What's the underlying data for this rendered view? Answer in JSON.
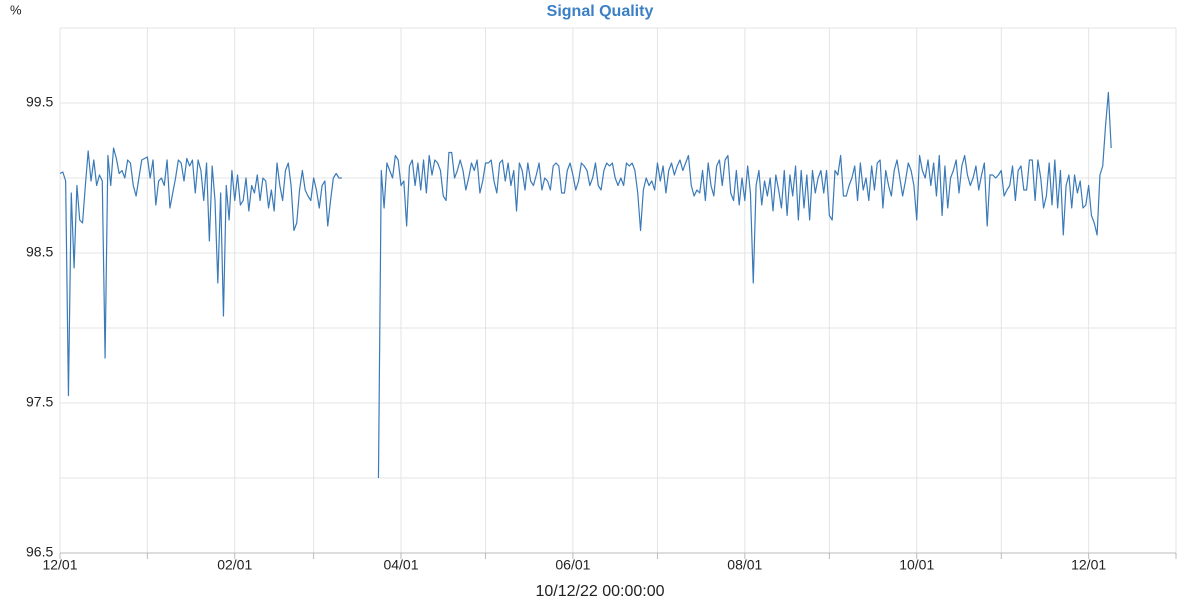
{
  "chart_data": {
    "type": "line",
    "title": "Signal Quality",
    "y_label": "%",
    "x_label": "10/12/22 00:00:00",
    "color": "#3a7ab8",
    "grid": true,
    "xlim": [
      0,
      396
    ],
    "xticks": [
      {
        "value": 0,
        "label": "12/01"
      },
      {
        "value": 31,
        "label": null
      },
      {
        "value": 62,
        "label": "02/01"
      },
      {
        "value": 90,
        "label": null
      },
      {
        "value": 121,
        "label": "04/01"
      },
      {
        "value": 151,
        "label": null
      },
      {
        "value": 182,
        "label": "06/01"
      },
      {
        "value": 212,
        "label": null
      },
      {
        "value": 243,
        "label": "08/01"
      },
      {
        "value": 273,
        "label": null
      },
      {
        "value": 304,
        "label": "10/01"
      },
      {
        "value": 334,
        "label": null
      },
      {
        "value": 365,
        "label": "12/01"
      },
      {
        "value": 396,
        "label": null
      }
    ],
    "ylim": [
      96.5,
      100
    ],
    "yticks": [
      96.5,
      {
        "value": 97,
        "label": null
      },
      97.5,
      {
        "value": 98,
        "label": null
      },
      98.5,
      {
        "value": 99,
        "label": null
      },
      99.5,
      {
        "value": 100,
        "label": null
      }
    ],
    "x": [
      0,
      1,
      2,
      3,
      4,
      5,
      6,
      7,
      8,
      9,
      10,
      11,
      12,
      13,
      14,
      15,
      16,
      17,
      18,
      19,
      20,
      21,
      22,
      23,
      24,
      25,
      26,
      27,
      28,
      29,
      30,
      31,
      32,
      33,
      34,
      35,
      36,
      37,
      38,
      39,
      40,
      41,
      42,
      43,
      44,
      45,
      46,
      47,
      48,
      49,
      50,
      51,
      52,
      53,
      54,
      55,
      56,
      57,
      58,
      59,
      60,
      61,
      62,
      63,
      64,
      65,
      66,
      67,
      68,
      69,
      70,
      71,
      72,
      73,
      74,
      75,
      76,
      77,
      78,
      79,
      80,
      81,
      82,
      83,
      84,
      85,
      86,
      87,
      88,
      89,
      90,
      91,
      92,
      93,
      94,
      95,
      96,
      97,
      98,
      99,
      100,
      101,
      102,
      103,
      104,
      105,
      106,
      107,
      108,
      109,
      110,
      111,
      112,
      113,
      114,
      115,
      116,
      117,
      118,
      119,
      120,
      121,
      122,
      123,
      124,
      125,
      126,
      127,
      128,
      129,
      130,
      131,
      132,
      133,
      134,
      135,
      136,
      137,
      138,
      139,
      140,
      141,
      142,
      143,
      144,
      145,
      146,
      147,
      148,
      149,
      150,
      151,
      152,
      153,
      154,
      155,
      156,
      157,
      158,
      159,
      160,
      161,
      162,
      163,
      164,
      165,
      166,
      167,
      168,
      169,
      170,
      171,
      172,
      173,
      174,
      175,
      176,
      177,
      178,
      179,
      180,
      181,
      182,
      183,
      184,
      185,
      186,
      187,
      188,
      189,
      190,
      191,
      192,
      193,
      194,
      195,
      196,
      197,
      198,
      199,
      200,
      201,
      202,
      203,
      204,
      205,
      206,
      207,
      208,
      209,
      210,
      211,
      212,
      213,
      214,
      215,
      216,
      217,
      218,
      219,
      220,
      221,
      222,
      223,
      224,
      225,
      226,
      227,
      228,
      229,
      230,
      231,
      232,
      233,
      234,
      235,
      236,
      237,
      238,
      239,
      240,
      241,
      242,
      243,
      244,
      245,
      246,
      247,
      248,
      249,
      250,
      251,
      252,
      253,
      254,
      255,
      256,
      257,
      258,
      259,
      260,
      261,
      262,
      263,
      264,
      265,
      266,
      267,
      268,
      269,
      270,
      271,
      272,
      273,
      274,
      275,
      276,
      277,
      278,
      279,
      280,
      281,
      282,
      283,
      284,
      285,
      286,
      287,
      288,
      289,
      290,
      291,
      292,
      293,
      294,
      295,
      296,
      297,
      298,
      299,
      300,
      301,
      302,
      303,
      304,
      305,
      306,
      307,
      308,
      309,
      310,
      311,
      312,
      313,
      314,
      315,
      316,
      317,
      318,
      319,
      320,
      321,
      322,
      323,
      324,
      325,
      326,
      327,
      328,
      329,
      330,
      331,
      332,
      333,
      334,
      335,
      336,
      337,
      338,
      339,
      340,
      341,
      342,
      343,
      344,
      345,
      346,
      347,
      348,
      349,
      350,
      351,
      352,
      353,
      354,
      355,
      356,
      357,
      358,
      359,
      360,
      361,
      362,
      363,
      364,
      365,
      366,
      367,
      368,
      369,
      370,
      371,
      372,
      373
    ],
    "values": [
      99.03,
      99.04,
      98.98,
      97.55,
      98.9,
      98.4,
      98.95,
      98.72,
      98.7,
      98.95,
      99.18,
      98.98,
      99.12,
      98.95,
      99.02,
      98.98,
      97.8,
      99.15,
      98.95,
      99.2,
      99.13,
      99.03,
      99.05,
      99.0,
      99.12,
      99.1,
      98.95,
      98.88,
      99.0,
      99.12,
      99.13,
      99.14,
      99.0,
      99.12,
      98.82,
      98.98,
      99.0,
      98.95,
      99.12,
      98.8,
      98.9,
      99.0,
      99.12,
      99.1,
      98.98,
      99.13,
      99.08,
      99.12,
      98.9,
      99.12,
      99.05,
      98.85,
      99.1,
      98.58,
      99.08,
      98.85,
      98.3,
      98.9,
      98.08,
      98.95,
      98.72,
      99.05,
      98.85,
      99.02,
      98.82,
      98.85,
      99.0,
      98.78,
      98.95,
      98.9,
      99.02,
      98.85,
      99.0,
      98.98,
      98.8,
      98.92,
      98.78,
      99.1,
      98.95,
      98.85,
      99.05,
      99.1,
      98.95,
      98.65,
      98.7,
      98.92,
      99.05,
      98.92,
      98.88,
      98.85,
      99.0,
      98.92,
      98.8,
      98.95,
      98.98,
      98.68,
      98.85,
      99.0,
      99.03,
      99.0,
      99.0,
      null,
      null,
      null,
      null,
      null,
      null,
      null,
      null,
      null,
      null,
      null,
      null,
      97.0,
      99.05,
      98.8,
      99.1,
      99.05,
      99.0,
      99.15,
      99.12,
      98.95,
      98.98,
      98.68,
      99.08,
      99.12,
      98.95,
      99.1,
      98.92,
      99.12,
      98.9,
      99.15,
      99.02,
      99.12,
      99.1,
      99.05,
      98.88,
      98.85,
      99.17,
      99.17,
      99.0,
      99.05,
      99.12,
      99.05,
      98.92,
      99.0,
      99.1,
      99.05,
      99.12,
      98.9,
      98.98,
      99.1,
      99.1,
      99.12,
      98.98,
      98.9,
      99.1,
      99.12,
      98.98,
      99.1,
      98.95,
      99.05,
      98.78,
      99.1,
      99.05,
      98.92,
      99.1,
      98.98,
      98.95,
      99.02,
      99.1,
      98.92,
      99.0,
      98.98,
      98.92,
      99.08,
      99.1,
      99.08,
      98.9,
      98.9,
      99.05,
      99.1,
      99.02,
      98.92,
      98.98,
      99.1,
      99.08,
      99.05,
      98.95,
      99.0,
      99.1,
      98.95,
      98.92,
      99.05,
      99.1,
      99.08,
      99.1,
      99.0,
      98.95,
      99.0,
      98.95,
      99.1,
      99.08,
      99.1,
      99.05,
      98.9,
      98.65,
      98.92,
      99.0,
      98.95,
      98.98,
      98.92,
      99.1,
      98.98,
      99.08,
      98.9,
      99.05,
      99.1,
      99.02,
      99.08,
      99.12,
      99.05,
      99.1,
      99.15,
      98.95,
      98.88,
      98.92,
      98.9,
      99.05,
      98.85,
      99.1,
      98.95,
      98.88,
      99.08,
      99.12,
      98.95,
      99.12,
      99.15,
      98.9,
      98.85,
      99.05,
      98.82,
      99.0,
      98.85,
      99.08,
      98.9,
      98.3,
      98.95,
      99.05,
      98.82,
      98.98,
      98.88,
      99.0,
      98.78,
      99.02,
      98.92,
      98.8,
      99.05,
      98.75,
      99.02,
      98.88,
      99.08,
      98.72,
      99.05,
      98.8,
      99.02,
      98.72,
      99.05,
      98.9,
      99.0,
      99.05,
      98.9,
      99.05,
      98.75,
      98.72,
      99.05,
      99.02,
      99.15,
      98.88,
      98.88,
      98.95,
      99.0,
      99.08,
      98.85,
      99.1,
      98.92,
      99.0,
      98.85,
      99.08,
      98.92,
      99.1,
      99.12,
      98.8,
      99.05,
      98.95,
      98.88,
      99.05,
      99.12,
      99.0,
      98.88,
      98.98,
      99.1,
      99.05,
      98.95,
      98.72,
      99.15,
      99.05,
      99.0,
      99.12,
      98.95,
      99.1,
      98.88,
      99.15,
      98.75,
      99.08,
      98.8,
      99.0,
      99.05,
      99.12,
      98.9,
      99.08,
      99.15,
      99.02,
      98.95,
      99.0,
      99.08,
      98.92,
      99.02,
      99.1,
      98.68,
      99.02,
      99.02,
      99.0,
      99.02,
      99.05,
      98.88,
      98.92,
      98.95,
      99.08,
      98.85,
      99.05,
      99.08,
      98.92,
      98.92,
      99.12,
      99.12,
      98.85,
      99.12,
      99.0,
      98.8,
      98.88,
      99.1,
      98.82,
      99.12,
      98.8,
      99.05,
      98.62,
      98.95,
      99.02,
      98.8,
      99.02,
      98.9,
      98.98,
      98.8,
      98.82,
      98.95,
      98.75,
      98.7,
      98.62,
      99.02,
      99.08,
      99.35,
      99.57,
      99.2
    ]
  }
}
